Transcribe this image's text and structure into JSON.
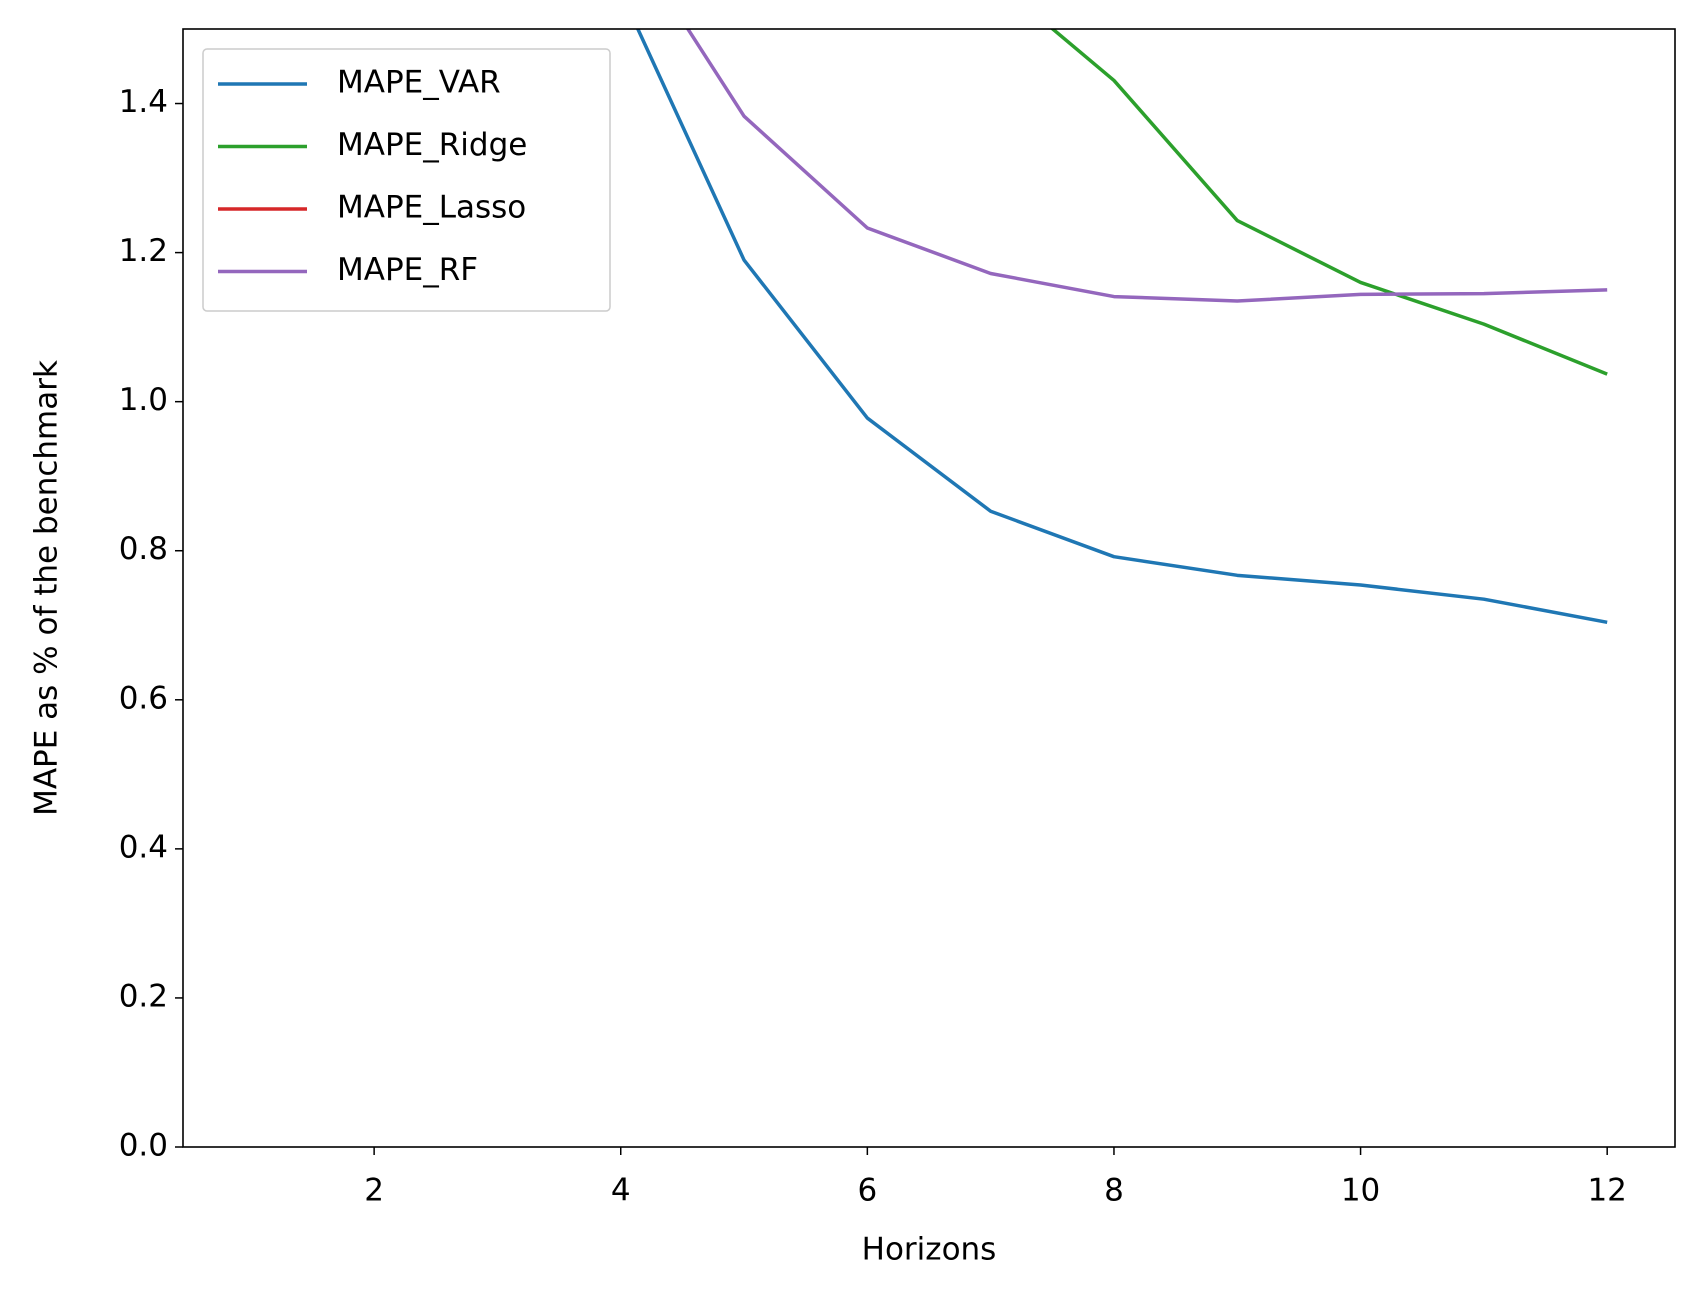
{
  "chart_data": {
    "type": "line",
    "x_label": "Horizons",
    "y_label": "MAPE as % of the benchmark",
    "x": [
      1,
      2,
      3,
      4,
      5,
      6,
      7,
      8,
      9,
      10,
      11,
      12
    ],
    "series": [
      {
        "name": "MAPE_VAR",
        "color": "#1f77b4",
        "values": [
          null,
          null,
          null,
          1.55,
          1.19,
          0.978,
          0.853,
          0.792,
          0.767,
          0.754,
          0.735,
          0.704
        ]
      },
      {
        "name": "MAPE_Ridge",
        "color": "#2ca02c",
        "values": [
          null,
          null,
          null,
          null,
          null,
          null,
          1.57,
          1.431,
          1.243,
          1.16,
          1.104,
          1.037
        ]
      },
      {
        "name": "MAPE_Lasso",
        "color": "#d62728",
        "values": [
          null,
          null,
          null,
          null,
          null,
          null,
          null,
          null,
          null,
          null,
          null,
          null
        ]
      },
      {
        "name": "MAPE_RF",
        "color": "#9467bd",
        "values": [
          null,
          null,
          null,
          1.64,
          1.383,
          1.233,
          1.172,
          1.141,
          1.135,
          1.144,
          1.145,
          1.15
        ]
      }
    ],
    "xlim": [
      0.45,
      12.55
    ],
    "ylim": [
      0,
      1.5
    ],
    "xticks": [
      2,
      4,
      6,
      8,
      10,
      12
    ],
    "yticks": [
      {
        "value": 0,
        "label": "0.0"
      },
      0.2,
      0.4,
      0.6,
      0.8,
      {
        "value": 1,
        "label": "1.0"
      },
      1.2,
      1.4
    ],
    "legend": "upper left"
  }
}
